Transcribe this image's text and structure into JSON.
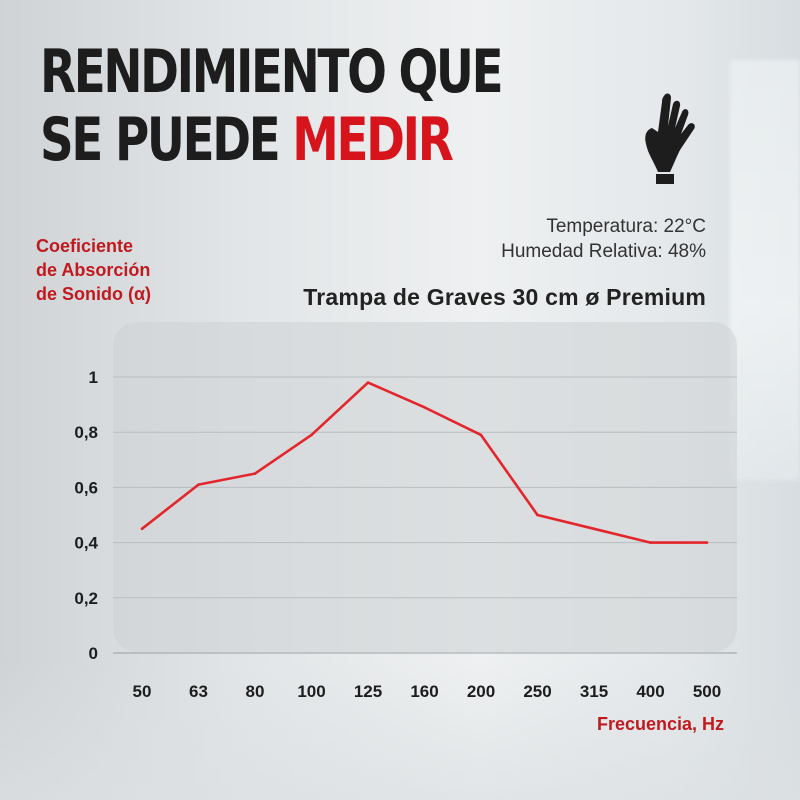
{
  "headline": {
    "line1": "RENDIMIENTO QUE",
    "line2_prefix": "SE PUEDE ",
    "line2_accent": "MEDIR"
  },
  "icons": {
    "hand": "hand-gesture-icon"
  },
  "conditions": {
    "temperature": "Temperatura: 22°C",
    "humidity": "Humedad Relativa: 48%"
  },
  "colors": {
    "accent": "#d7141b",
    "line": "#e3262c",
    "text": "#1d1d1d"
  },
  "chart_data": {
    "type": "line",
    "title": "Trampa de Graves 30 cm ø Premium",
    "ylabel_lines": [
      "Coeficiente",
      "de Absorción",
      "de Sonido (α)"
    ],
    "xlabel": "Frecuencia, Hz",
    "categories": [
      "50",
      "63",
      "80",
      "100",
      "125",
      "160",
      "200",
      "250",
      "315",
      "400",
      "500"
    ],
    "values": [
      0.45,
      0.61,
      0.65,
      0.79,
      0.98,
      0.89,
      0.79,
      0.5,
      0.45,
      0.4,
      0.4
    ],
    "ylim": [
      0,
      1
    ],
    "yticks": [
      0,
      0.2,
      0.4,
      0.6,
      0.8,
      1
    ],
    "ytick_labels": [
      "0",
      "0,2",
      "0,4",
      "0,6",
      "0,8",
      "1"
    ],
    "grid": true
  }
}
